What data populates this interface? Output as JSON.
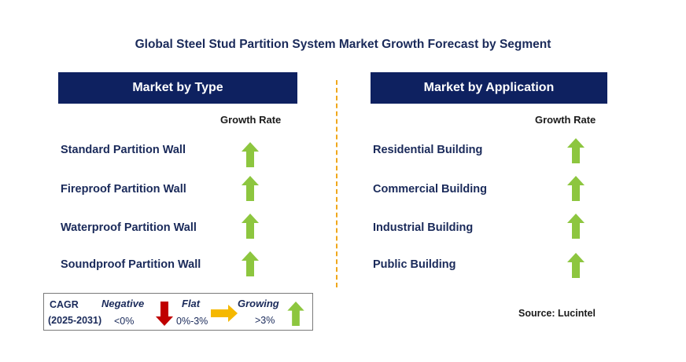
{
  "title": "Global Steel Stud Partition System Market Growth Forecast by Segment",
  "left_panel": {
    "header": "Market by Type",
    "rate_label": "Growth Rate",
    "items": [
      {
        "label": "Standard Partition Wall",
        "trend": "growing"
      },
      {
        "label": "Fireproof Partition Wall",
        "trend": "growing"
      },
      {
        "label": "Waterproof Partition Wall",
        "trend": "growing"
      },
      {
        "label": "Soundproof Partition Wall",
        "trend": "growing"
      }
    ]
  },
  "right_panel": {
    "header": "Market by Application",
    "rate_label": "Growth Rate",
    "items": [
      {
        "label": "Residential Building",
        "trend": "growing"
      },
      {
        "label": "Commercial Building",
        "trend": "growing"
      },
      {
        "label": "Industrial Building",
        "trend": "growing"
      },
      {
        "label": "Public Building",
        "trend": "growing"
      }
    ]
  },
  "legend": {
    "cagr": "CAGR",
    "period": "(2025-2031)",
    "negative": "Negative",
    "negative_range": "<0%",
    "flat": "Flat",
    "flat_range": "0%-3%",
    "growing": "Growing",
    "growing_range": ">3%"
  },
  "source": "Source: Lucintel",
  "colors": {
    "header_bg": "#0e2160",
    "growing": "#8dc63f",
    "negative": "#c00000",
    "flat": "#f5b800",
    "divider": "#f0a81c"
  }
}
